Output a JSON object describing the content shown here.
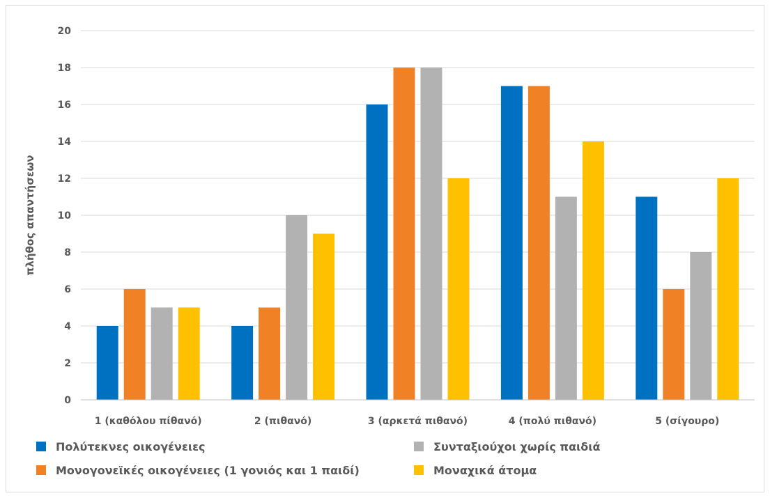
{
  "chart_data": {
    "type": "bar",
    "title": "",
    "xlabel": "",
    "ylabel": "πλήθος απαντήσεων",
    "ylim": [
      0,
      20
    ],
    "yticks": [
      0,
      2,
      4,
      6,
      8,
      10,
      12,
      14,
      16,
      18,
      20
    ],
    "grid": true,
    "legend_position": "bottom",
    "categories": [
      "1 (καθόλου πίθανό)",
      "2 (πιθανό)",
      "3 (αρκετά πιθανό)",
      "4 (πολύ πιθανό)",
      "5 (σίγουρο)"
    ],
    "series": [
      {
        "name": "Πολύτεκνες οικογένειες",
        "color": "#0070C0",
        "values": [
          4,
          4,
          16,
          17,
          11
        ]
      },
      {
        "name": "Μονογονεϊκές οικογένειες (1 γονιός και 1 παιδί)",
        "color": "#F08125",
        "values": [
          6,
          5,
          18,
          17,
          6
        ]
      },
      {
        "name": "Συνταξιούχοι χωρίς παιδιά",
        "color": "#B2B2B2",
        "values": [
          5,
          10,
          18,
          11,
          8
        ]
      },
      {
        "name": "Μοναχικά άτομα",
        "color": "#FFC000",
        "values": [
          5,
          9,
          12,
          14,
          12
        ]
      }
    ]
  }
}
